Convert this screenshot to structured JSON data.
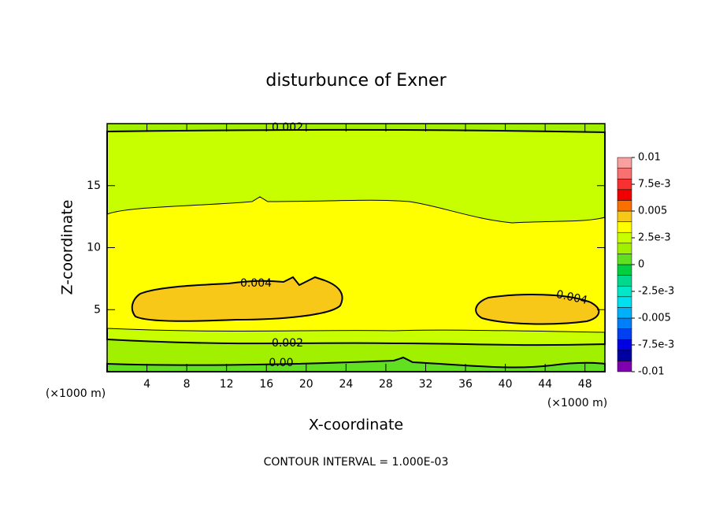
{
  "chart_data": {
    "type": "contour",
    "title": "disturbunce of Exner",
    "xlabel": "X-coordinate",
    "ylabel": "Z-coordinate",
    "x_unit": "(×1000 m)",
    "annotation": "CONTOUR INTERVAL = 1.000E-03",
    "xlim": [
      0,
      50
    ],
    "ylim": [
      0,
      20
    ],
    "xticks": [
      4,
      8,
      12,
      16,
      20,
      24,
      28,
      32,
      36,
      40,
      44,
      48
    ],
    "yticks": [
      5,
      10,
      15
    ],
    "levels": [
      -0.01,
      -0.009,
      -0.008,
      -0.007,
      -0.006,
      -0.005,
      -0.004,
      -0.003,
      -0.002,
      -0.001,
      0,
      0.001,
      0.002,
      0.003,
      0.004,
      0.005,
      0.006,
      0.007,
      0.008,
      0.009,
      0.01
    ],
    "colors": [
      "#8000b0",
      "#0000a0",
      "#0000e0",
      "#0040f0",
      "#0080f8",
      "#00b0f8",
      "#00e0f0",
      "#00e8c8",
      "#00d890",
      "#00d040",
      "#60e020",
      "#a0f000",
      "#c8ff00",
      "#ffff00",
      "#f8c818",
      "#f87000",
      "#f00000",
      "#f83030",
      "#f87070",
      "#f8a0a0"
    ],
    "colorbar_ticks": [
      0.01,
      {
        "value": 0.0075,
        "label": "7.5e-3"
      },
      0.005,
      {
        "value": 0.0025,
        "label": "2.5e-3"
      },
      0,
      {
        "value": -0.0025,
        "label": "-2.5e-3"
      },
      -0.005,
      {
        "value": -0.0075,
        "label": "-7.5e-3"
      },
      -0.01
    ],
    "contour_labels": [
      "0.002",
      "0.004",
      "0.004",
      "0.002",
      "0.00"
    ]
  }
}
